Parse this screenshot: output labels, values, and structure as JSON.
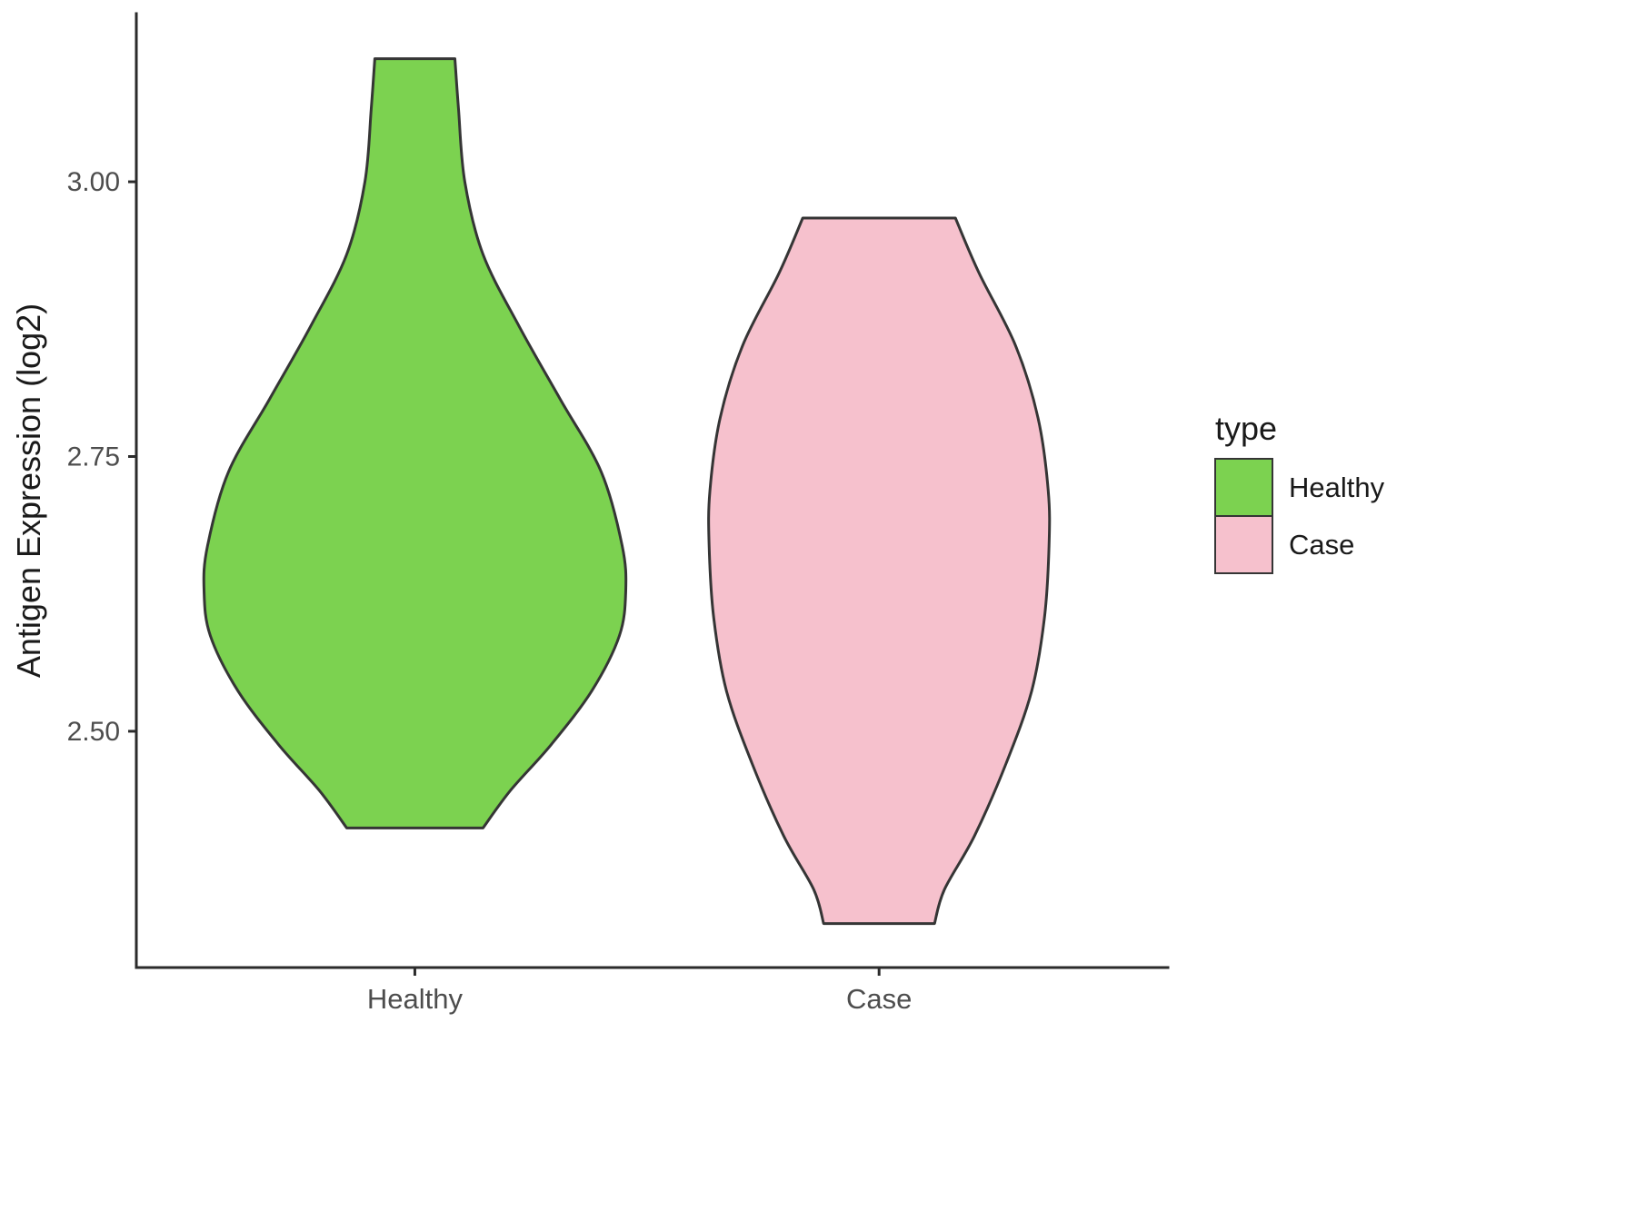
{
  "figure": {
    "background": "#ffffff"
  },
  "y_axis": {
    "title": "Antigen Expression (log2)",
    "tick_labels": [
      "3.00",
      "2.75",
      "2.50"
    ]
  },
  "x_axis": {
    "tick_labels": [
      "Healthy",
      "Case"
    ]
  },
  "legend": {
    "title": "type",
    "position": "right",
    "items": [
      {
        "label": "Healthy",
        "color": "#7CD250"
      },
      {
        "label": "Case",
        "color": "#F6C1CD"
      }
    ]
  },
  "chart_data": {
    "type": "violin",
    "title": "",
    "xlabel": "",
    "ylabel": "Antigen Expression (log2)",
    "categories": [
      "Healthy",
      "Case"
    ],
    "ylim": [
      2.285,
      3.153
    ],
    "yticks": [
      3.0,
      2.75,
      2.5
    ],
    "ytick_labels": [
      "3.00",
      "2.75",
      "2.50"
    ],
    "grid": false,
    "legend_title": "type",
    "legend_position": "right",
    "series": [
      {
        "name": "Healthy",
        "color": "#7CD250",
        "outline": "#353535",
        "value_range": [
          2.412,
          3.112
        ],
        "profile_note": "pairs of [expression_value, relative_half_width 0..1]",
        "profile": [
          [
            3.112,
            0.19
          ],
          [
            3.066,
            0.207
          ],
          [
            3.0,
            0.237
          ],
          [
            2.934,
            0.323
          ],
          [
            2.868,
            0.496
          ],
          [
            2.802,
            0.69
          ],
          [
            2.736,
            0.884
          ],
          [
            2.669,
            0.983
          ],
          [
            2.628,
            1.0
          ],
          [
            2.587,
            0.97
          ],
          [
            2.537,
            0.84
          ],
          [
            2.488,
            0.647
          ],
          [
            2.446,
            0.453
          ],
          [
            2.412,
            0.323
          ]
        ]
      },
      {
        "name": "Case",
        "color": "#F6C1CD",
        "outline": "#353535",
        "value_range": [
          2.325,
          2.967
        ],
        "profile": [
          [
            2.967,
            0.362
          ],
          [
            2.917,
            0.474
          ],
          [
            2.851,
            0.647
          ],
          [
            2.785,
            0.754
          ],
          [
            2.719,
            0.802
          ],
          [
            2.669,
            0.806
          ],
          [
            2.603,
            0.784
          ],
          [
            2.537,
            0.724
          ],
          [
            2.471,
            0.603
          ],
          [
            2.405,
            0.453
          ],
          [
            2.356,
            0.31
          ],
          [
            2.325,
            0.263
          ]
        ]
      }
    ]
  }
}
